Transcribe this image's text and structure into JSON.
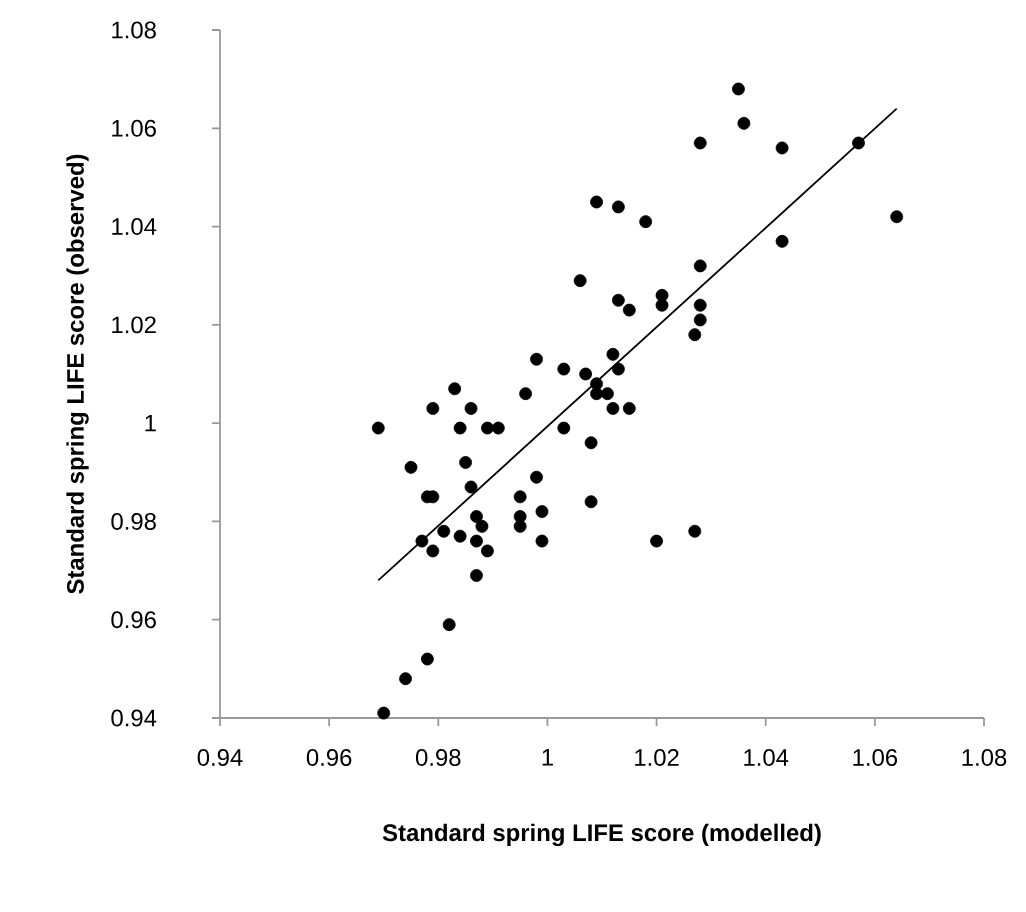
{
  "chart_data": {
    "type": "scatter",
    "xlabel": "Standard spring LIFE score (modelled)",
    "ylabel": "Standard spring LIFE score (observed)",
    "xlim": [
      0.94,
      1.08
    ],
    "ylim": [
      0.94,
      1.08
    ],
    "xticks": [
      0.94,
      0.96,
      0.98,
      1,
      1.02,
      1.04,
      1.06,
      1.08
    ],
    "yticks": [
      0.94,
      0.96,
      0.98,
      1,
      1.02,
      1.04,
      1.06,
      1.08
    ],
    "series": [
      {
        "marker": "circle",
        "color": "#000000",
        "x": [
          0.969,
          0.975,
          0.978,
          0.979,
          0.977,
          0.979,
          0.981,
          0.984,
          0.982,
          0.978,
          0.974,
          0.97,
          0.983,
          0.979,
          0.986,
          0.984,
          0.989,
          0.991,
          0.985,
          0.986,
          0.987,
          0.988,
          0.987,
          0.989,
          0.987,
          0.996,
          0.998,
          1.003,
          1.003,
          0.995,
          0.998,
          0.999,
          0.995,
          0.995,
          0.999,
          1.008,
          1.008,
          1.007,
          1.009,
          1.012,
          1.015,
          1.012,
          1.013,
          1.035,
          1.036,
          1.028,
          1.043,
          1.057,
          1.064,
          1.009,
          1.013,
          1.018,
          1.043,
          1.028,
          1.006,
          1.013,
          1.015,
          1.021,
          1.021,
          1.028,
          1.028,
          1.027,
          1.009,
          1.011,
          1.02,
          1.027
        ],
        "values": [
          0.999,
          0.991,
          0.985,
          0.985,
          0.976,
          0.974,
          0.978,
          0.977,
          0.959,
          0.952,
          0.948,
          0.941,
          1.007,
          1.003,
          1.003,
          0.999,
          0.999,
          0.999,
          0.992,
          0.987,
          0.981,
          0.979,
          0.976,
          0.974,
          0.969,
          1.006,
          1.013,
          1.011,
          0.999,
          0.985,
          0.989,
          0.982,
          0.981,
          0.979,
          0.976,
          0.996,
          0.984,
          1.01,
          1.006,
          1.003,
          1.003,
          1.014,
          1.011,
          1.068,
          1.061,
          1.057,
          1.056,
          1.057,
          1.042,
          1.045,
          1.044,
          1.041,
          1.037,
          1.032,
          1.029,
          1.025,
          1.023,
          1.026,
          1.024,
          1.024,
          1.021,
          1.018,
          1.008,
          1.006,
          0.976,
          0.978
        ]
      },
      {
        "type": "line",
        "marker": "none",
        "color": "#000000",
        "x": [
          0.969,
          1.064
        ],
        "values": [
          0.968,
          1.064
        ]
      }
    ]
  }
}
